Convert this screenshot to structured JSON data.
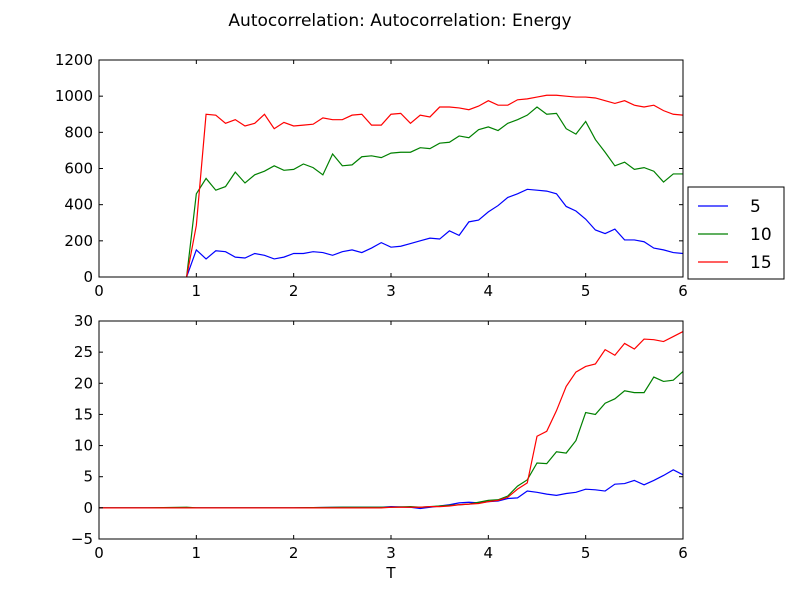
{
  "chart_data": {
    "type": "line",
    "title": "Autocorrelation: Autocorrelation: Energy",
    "legend": {
      "placement": "right, between subplots",
      "entries": [
        "5",
        "10",
        "15"
      ]
    },
    "colors": {
      "5": "#0000ff",
      "10": "#008000",
      "15": "#ff0000"
    },
    "subplots": [
      {
        "xlim": [
          0,
          6
        ],
        "ylim": [
          0,
          1200
        ],
        "xticks": [
          "0",
          "1",
          "2",
          "3",
          "4",
          "5",
          "6"
        ],
        "yticks": [
          "0",
          "200",
          "400",
          "600",
          "800",
          "1000",
          "1200"
        ],
        "xlabel": "",
        "ylabel": "",
        "grid": false,
        "series": [
          {
            "name": "5",
            "x": [
              0.9,
              1.0,
              1.1,
              1.2,
              1.3,
              1.4,
              1.5,
              1.6,
              1.7,
              1.8,
              1.9,
              2.0,
              2.1,
              2.2,
              2.3,
              2.4,
              2.5,
              2.6,
              2.7,
              2.8,
              2.9,
              3.0,
              3.1,
              3.2,
              3.3,
              3.4,
              3.5,
              3.6,
              3.7,
              3.8,
              3.9,
              4.0,
              4.1,
              4.2,
              4.3,
              4.4,
              4.5,
              4.6,
              4.7,
              4.8,
              4.9,
              5.0,
              5.1,
              5.2,
              5.3,
              5.4,
              5.5,
              5.6,
              5.7,
              5.8,
              5.9,
              6.0
            ],
            "y": [
              0,
              150,
              100,
              145,
              140,
              110,
              105,
              130,
              120,
              100,
              110,
              130,
              130,
              140,
              135,
              120,
              140,
              150,
              135,
              160,
              190,
              165,
              170,
              185,
              200,
              215,
              210,
              255,
              230,
              305,
              315,
              360,
              395,
              440,
              460,
              485,
              480,
              475,
              460,
              390,
              365,
              320,
              260,
              240,
              265,
              205,
              205,
              195,
              160,
              150,
              135,
              130
            ]
          },
          {
            "name": "10",
            "x": [
              0.9,
              1.0,
              1.1,
              1.2,
              1.3,
              1.4,
              1.5,
              1.6,
              1.7,
              1.8,
              1.9,
              2.0,
              2.1,
              2.2,
              2.3,
              2.4,
              2.5,
              2.6,
              2.7,
              2.8,
              2.9,
              3.0,
              3.1,
              3.2,
              3.3,
              3.4,
              3.5,
              3.6,
              3.7,
              3.8,
              3.9,
              4.0,
              4.1,
              4.2,
              4.3,
              4.4,
              4.5,
              4.6,
              4.7,
              4.8,
              4.9,
              5.0,
              5.1,
              5.2,
              5.3,
              5.4,
              5.5,
              5.6,
              5.7,
              5.8,
              5.9,
              6.0
            ],
            "y": [
              0,
              460,
              545,
              480,
              500,
              580,
              520,
              565,
              585,
              615,
              590,
              595,
              625,
              605,
              565,
              680,
              615,
              620,
              665,
              670,
              660,
              685,
              690,
              690,
              715,
              710,
              740,
              745,
              780,
              770,
              815,
              830,
              810,
              850,
              870,
              895,
              940,
              900,
              905,
              820,
              790,
              860,
              760,
              690,
              615,
              635,
              595,
              605,
              585,
              525,
              570,
              570
            ]
          },
          {
            "name": "15",
            "x": [
              0.9,
              1.0,
              1.1,
              1.2,
              1.3,
              1.4,
              1.5,
              1.6,
              1.7,
              1.8,
              1.9,
              2.0,
              2.1,
              2.2,
              2.3,
              2.4,
              2.5,
              2.6,
              2.7,
              2.8,
              2.9,
              3.0,
              3.1,
              3.2,
              3.3,
              3.4,
              3.5,
              3.6,
              3.7,
              3.8,
              3.9,
              4.0,
              4.1,
              4.2,
              4.3,
              4.4,
              4.5,
              4.6,
              4.7,
              4.8,
              4.9,
              5.0,
              5.1,
              5.2,
              5.3,
              5.4,
              5.5,
              5.6,
              5.7,
              5.8,
              5.9,
              6.0
            ],
            "y": [
              0,
              285,
              900,
              895,
              850,
              870,
              835,
              850,
              900,
              820,
              855,
              835,
              840,
              845,
              880,
              870,
              870,
              895,
              900,
              840,
              840,
              900,
              905,
              850,
              895,
              885,
              940,
              940,
              935,
              925,
              945,
              975,
              950,
              950,
              980,
              985,
              995,
              1005,
              1005,
              1000,
              995,
              995,
              990,
              975,
              960,
              975,
              950,
              940,
              950,
              920,
              900,
              895
            ]
          }
        ]
      },
      {
        "xlim": [
          0,
          6
        ],
        "ylim": [
          -5,
          30
        ],
        "xticks": [
          "0",
          "1",
          "2",
          "3",
          "4",
          "5",
          "6"
        ],
        "yticks": [
          "−5",
          "0",
          "5",
          "10",
          "15",
          "20",
          "25",
          "30"
        ],
        "xlabel": "T",
        "ylabel": "",
        "grid": false,
        "series": [
          {
            "name": "5",
            "x": [
              0,
              0.5,
              0.9,
              1.0,
              1.5,
              2.0,
              2.5,
              2.9,
              3.0,
              3.2,
              3.3,
              3.4,
              3.5,
              3.6,
              3.7,
              3.8,
              3.9,
              4.0,
              4.1,
              4.2,
              4.3,
              4.4,
              4.5,
              4.6,
              4.7,
              4.8,
              4.9,
              5.0,
              5.1,
              5.2,
              5.3,
              5.4,
              5.5,
              5.6,
              5.7,
              5.8,
              5.9,
              6.0
            ],
            "y": [
              0,
              0,
              0,
              0,
              0,
              0,
              0.1,
              0.1,
              0.2,
              0.1,
              -0.1,
              0.1,
              0.3,
              0.5,
              0.8,
              0.9,
              0.8,
              1.0,
              1.1,
              1.5,
              1.6,
              2.7,
              2.5,
              2.2,
              2.0,
              2.3,
              2.5,
              3.0,
              2.9,
              2.7,
              3.8,
              3.9,
              4.4,
              3.7,
              4.4,
              5.2,
              6.1,
              5.3
            ]
          },
          {
            "name": "10",
            "x": [
              0,
              0.5,
              0.9,
              1.0,
              1.5,
              2.0,
              2.5,
              2.9,
              3.0,
              3.2,
              3.3,
              3.4,
              3.5,
              3.6,
              3.7,
              3.8,
              3.9,
              4.0,
              4.1,
              4.2,
              4.3,
              4.4,
              4.5,
              4.6,
              4.7,
              4.8,
              4.9,
              5.0,
              5.1,
              5.2,
              5.3,
              5.4,
              5.5,
              5.6,
              5.7,
              5.8,
              5.9,
              6.0
            ],
            "y": [
              0,
              0,
              0.1,
              0,
              0,
              0,
              0.1,
              0.1,
              0.1,
              0.2,
              0.1,
              0.2,
              0.3,
              0.4,
              0.5,
              0.6,
              0.9,
              1.2,
              1.3,
              1.9,
              3.5,
              4.5,
              7.2,
              7.1,
              9.0,
              8.8,
              10.8,
              15.3,
              15.0,
              16.8,
              17.5,
              18.8,
              18.5,
              18.5,
              21.0,
              20.3,
              20.5,
              21.9
            ]
          },
          {
            "name": "15",
            "x": [
              0,
              0.5,
              0.9,
              1.0,
              1.5,
              2.0,
              2.5,
              2.9,
              3.0,
              3.2,
              3.3,
              3.4,
              3.5,
              3.6,
              3.7,
              3.8,
              3.9,
              4.0,
              4.1,
              4.2,
              4.3,
              4.4,
              4.5,
              4.6,
              4.7,
              4.8,
              4.9,
              5.0,
              5.1,
              5.2,
              5.3,
              5.4,
              5.5,
              5.6,
              5.7,
              5.8,
              5.9,
              6.0
            ],
            "y": [
              0,
              0,
              0,
              0,
              0,
              0,
              0,
              0,
              0.1,
              0.1,
              0.1,
              0.2,
              0.2,
              0.3,
              0.5,
              0.6,
              0.7,
              1.0,
              1.2,
              1.7,
              3.0,
              4.0,
              11.5,
              12.3,
              15.6,
              19.5,
              21.8,
              22.7,
              23.1,
              25.4,
              24.5,
              26.4,
              25.5,
              27.1,
              27.0,
              26.7,
              27.5,
              28.3
            ]
          }
        ]
      }
    ]
  }
}
